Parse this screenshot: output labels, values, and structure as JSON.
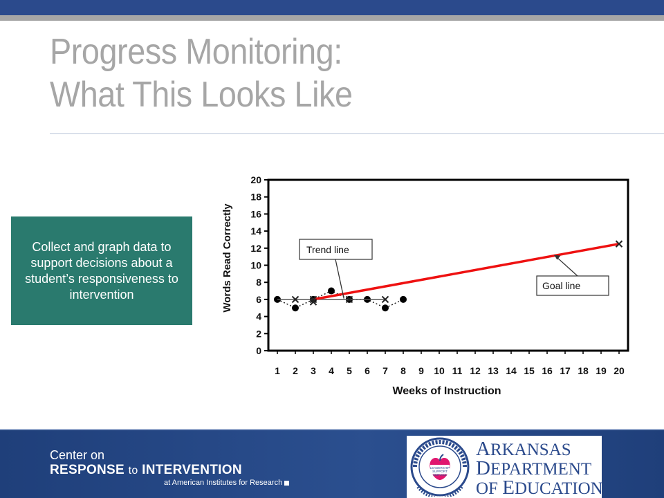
{
  "slide": {
    "title_line1": "Progress Monitoring:",
    "title_line2": "What This Looks Like",
    "callout": "Collect and graph data to support decisions about a student’s responsiveness to intervention"
  },
  "footer": {
    "crti_line1": "Center on",
    "crti_line2a": "RESPONSE",
    "crti_line2b": "to",
    "crti_line2c": "INTERVENTION",
    "crti_line3": "at American Institutes for Research",
    "ade_line1a": "A",
    "ade_line1b": "RKANSAS",
    "ade_line2a": "D",
    "ade_line2b": "EPARTMENT",
    "ade_line3a": "OF ",
    "ade_line3b": "E",
    "ade_line3c": "DUCATION",
    "seal_text_top": "ARKANSAS DEPARTMENT OF EDUCATION",
    "seal_center": "LEADERSHIP SUPPORT SERVICE"
  },
  "colors": {
    "header_blue": "#2b4a8c",
    "title_gray": "#a6a6a6",
    "callout_teal": "#2a7a6e",
    "goal_red": "#ee1111"
  },
  "chart_data": {
    "type": "line",
    "xlabel": "Weeks of Instruction",
    "ylabel": "Words Read Correctly",
    "xlim": [
      0.5,
      20.5
    ],
    "ylim": [
      0,
      20
    ],
    "x_ticks": [
      1,
      2,
      3,
      4,
      5,
      6,
      7,
      8,
      9,
      10,
      11,
      12,
      13,
      14,
      15,
      16,
      17,
      18,
      19,
      20
    ],
    "y_ticks": [
      0,
      2,
      4,
      6,
      8,
      10,
      12,
      14,
      16,
      18,
      20
    ],
    "grid": false,
    "series": [
      {
        "kind": "points",
        "marker": "circle",
        "style": "dotted",
        "x": [
          1,
          2,
          3,
          4,
          5,
          6,
          7,
          8
        ],
        "y": [
          6,
          5,
          6,
          7,
          6,
          6,
          5,
          6
        ]
      },
      {
        "kind": "trend",
        "marker": "x",
        "x": [
          1,
          3,
          5,
          7
        ],
        "y": [
          6,
          6,
          6,
          6
        ]
      },
      {
        "kind": "goal",
        "marker": "x",
        "x": [
          3,
          20
        ],
        "y": [
          6,
          12.5
        ]
      }
    ],
    "extra_marks": [
      {
        "marker": "x",
        "x": 2,
        "y": 6
      },
      {
        "marker": "x",
        "x": 3,
        "y": 5.7
      }
    ],
    "annotations": [
      {
        "text": "Trend line",
        "target_x": 4.7,
        "target_y": 6.1
      },
      {
        "text": "Goal line",
        "target_x": 16.4,
        "target_y": 11.2
      }
    ]
  }
}
